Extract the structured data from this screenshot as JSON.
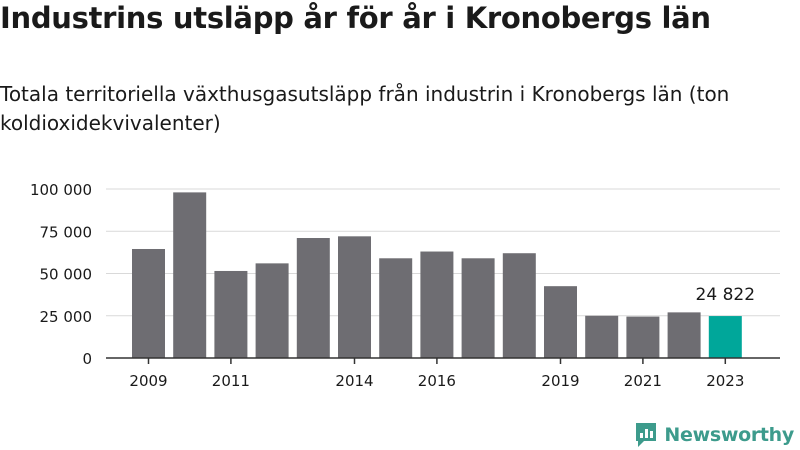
{
  "title": "Industrins utsläpp år för år i Kronobergs län",
  "subtitle": "Totala territoriella växthusgasutsläpp från industrin i Kronobergs län (ton koldioxidekvivalenter)",
  "brand": {
    "name": "Newsworthy",
    "icon": "newsworthy-logo-icon",
    "color": "#3d9b8c"
  },
  "chart_data": {
    "type": "bar",
    "categories": [
      "2009",
      "2010",
      "2011",
      "2012",
      "2013",
      "2014",
      "2015",
      "2016",
      "2017",
      "2018",
      "2019",
      "2020",
      "2021",
      "2022",
      "2023"
    ],
    "values": [
      64500,
      98000,
      51500,
      56000,
      71000,
      72000,
      59000,
      63000,
      59000,
      62000,
      42500,
      25000,
      24500,
      27000,
      24822
    ],
    "x_tick_labels": [
      "2009",
      "2011",
      "2014",
      "2016",
      "2019",
      "2021",
      "2023"
    ],
    "y_ticks": [
      0,
      25000,
      50000,
      75000,
      100000
    ],
    "y_tick_labels": [
      "0",
      "25 000",
      "50 000",
      "75 000",
      "100 000"
    ],
    "ylim": [
      0,
      100000
    ],
    "grid": true,
    "highlight_index": 14,
    "highlight_label": "24 822",
    "colors": {
      "bar": "#6e6d72",
      "highlight": "#00a79a",
      "grid": "#d9d9d9",
      "axis": "#333333"
    }
  }
}
